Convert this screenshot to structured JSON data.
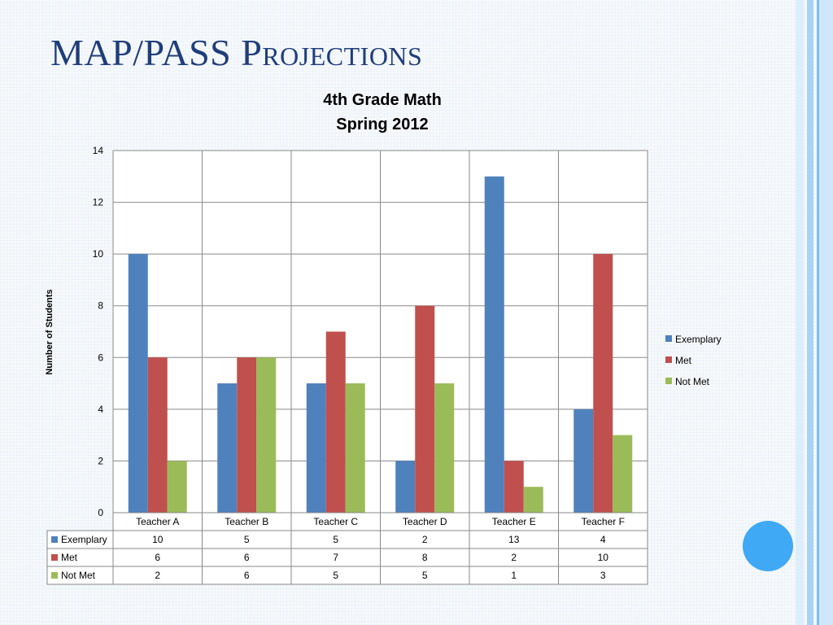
{
  "slide": {
    "title": "MAP/PASS Projections"
  },
  "colors": {
    "title": "#1f3d7a",
    "accent_circle": "#3fa9f5",
    "stripe_light": "#cfe6fb",
    "stripe_mid": "#9fcdf5",
    "stripe_dark": "#6fb4ef"
  },
  "chart_data": {
    "type": "bar",
    "title_line1": "4th Grade Math",
    "title_line2": "Spring 2012",
    "ylabel": "Number of Students",
    "xlabel": "",
    "ylim": [
      0,
      14
    ],
    "yticks": [
      0,
      2,
      4,
      6,
      8,
      10,
      12,
      14
    ],
    "grid": true,
    "legend_position": "right",
    "categories": [
      "Teacher A",
      "Teacher B",
      "Teacher C",
      "Teacher D",
      "Teacher E",
      "Teacher F"
    ],
    "series": [
      {
        "name": "Exemplary",
        "color": "#4f81bd",
        "values": [
          10,
          5,
          5,
          2,
          13,
          4
        ]
      },
      {
        "name": "Met",
        "color": "#c0504d",
        "values": [
          6,
          6,
          7,
          8,
          2,
          10
        ]
      },
      {
        "name": "Not Met",
        "color": "#9bbb59",
        "values": [
          2,
          6,
          5,
          5,
          1,
          3
        ]
      }
    ],
    "data_table": true
  }
}
